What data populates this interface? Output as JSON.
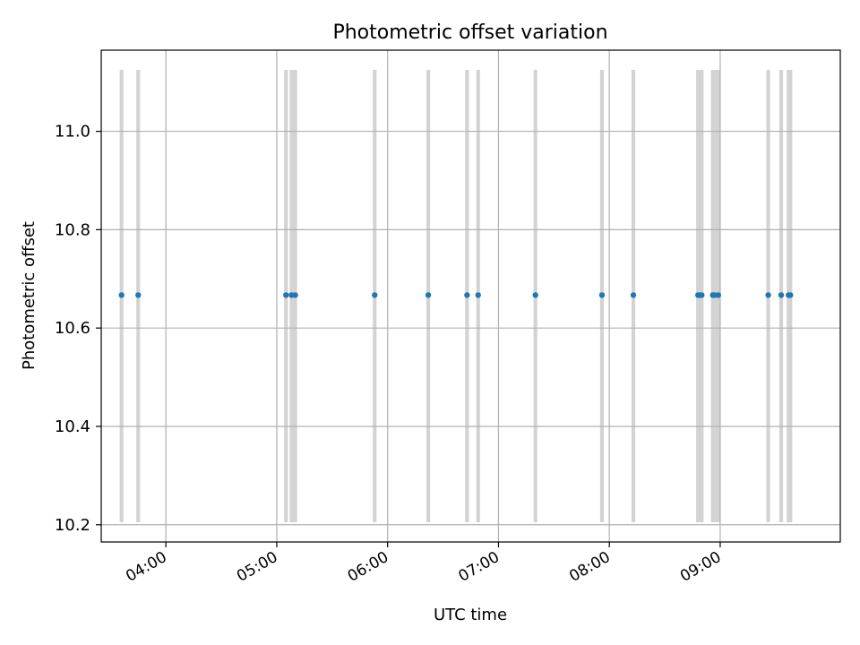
{
  "chart_data": {
    "type": "scatter",
    "title": "Photometric offset variation",
    "xlabel": "UTC time",
    "ylabel": "Photometric offset",
    "x_range": [
      "03:25",
      "10:05"
    ],
    "x_ticks": [
      "04:00",
      "05:00",
      "06:00",
      "07:00",
      "08:00",
      "09:00"
    ],
    "ylim": [
      10.165,
      11.165
    ],
    "y_ticks": [
      "10.2",
      "10.4",
      "10.6",
      "10.8",
      "11.0"
    ],
    "y_tick_values": [
      10.2,
      10.4,
      10.6,
      10.8,
      11.0
    ],
    "grid": true,
    "points": [
      {
        "x": "03:36",
        "y": 10.667
      },
      {
        "x": "03:45",
        "y": 10.667
      },
      {
        "x": "05:05",
        "y": 10.667
      },
      {
        "x": "05:08",
        "y": 10.667
      },
      {
        "x": "05:10",
        "y": 10.667
      },
      {
        "x": "05:53",
        "y": 10.667
      },
      {
        "x": "06:22",
        "y": 10.667
      },
      {
        "x": "06:43",
        "y": 10.667
      },
      {
        "x": "06:49",
        "y": 10.667
      },
      {
        "x": "07:20",
        "y": 10.667
      },
      {
        "x": "07:56",
        "y": 10.667
      },
      {
        "x": "08:13",
        "y": 10.667
      },
      {
        "x": "08:48",
        "y": 10.667
      },
      {
        "x": "08:49",
        "y": 10.667
      },
      {
        "x": "08:50",
        "y": 10.667
      },
      {
        "x": "08:56",
        "y": 10.667
      },
      {
        "x": "08:57",
        "y": 10.667
      },
      {
        "x": "08:59",
        "y": 10.667
      },
      {
        "x": "09:26",
        "y": 10.667
      },
      {
        "x": "09:33",
        "y": 10.667
      },
      {
        "x": "09:37",
        "y": 10.667
      },
      {
        "x": "09:38",
        "y": 10.667
      }
    ],
    "shaded_ranges": [
      {
        "start": "03:35",
        "end": "03:37"
      },
      {
        "start": "03:44",
        "end": "03:46"
      },
      {
        "start": "05:04",
        "end": "05:06"
      },
      {
        "start": "05:07",
        "end": "05:11"
      },
      {
        "start": "05:52",
        "end": "05:54"
      },
      {
        "start": "06:21",
        "end": "06:23"
      },
      {
        "start": "06:42",
        "end": "06:44"
      },
      {
        "start": "06:48",
        "end": "06:50"
      },
      {
        "start": "07:19",
        "end": "07:21"
      },
      {
        "start": "07:55",
        "end": "07:57"
      },
      {
        "start": "08:12",
        "end": "08:14"
      },
      {
        "start": "08:47",
        "end": "08:51"
      },
      {
        "start": "08:55",
        "end": "09:00"
      },
      {
        "start": "09:25",
        "end": "09:27"
      },
      {
        "start": "09:32",
        "end": "09:34"
      },
      {
        "start": "09:36",
        "end": "09:39"
      }
    ],
    "shade_y_range": [
      10.205,
      11.125
    ],
    "colors": {
      "points": "#1f77b4",
      "shade": "#d3d3d3",
      "grid": "#b0b0b0",
      "axes": "#000000"
    }
  }
}
